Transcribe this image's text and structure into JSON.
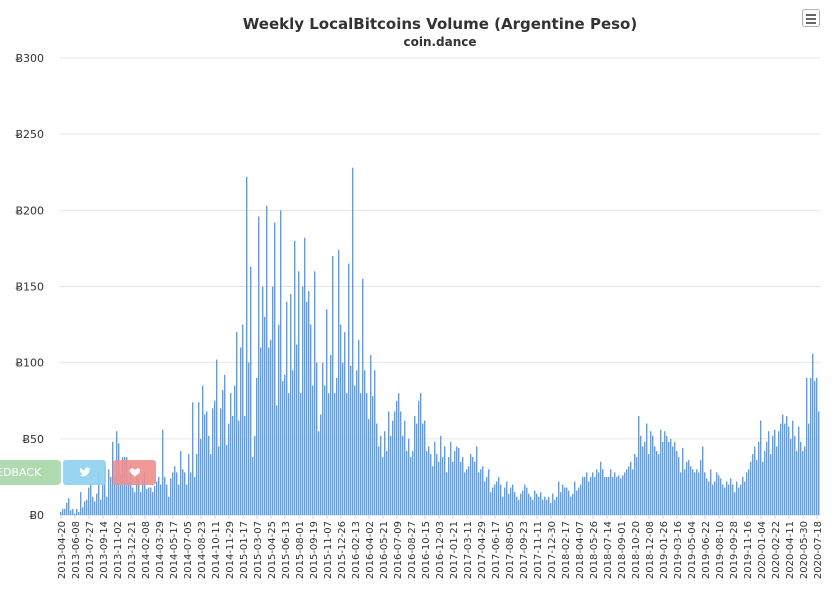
{
  "chart_data": {
    "type": "bar",
    "title": "Weekly LocalBitcoins Volume (Argentine Peso)",
    "subtitle": "coin.dance",
    "xlabel": "",
    "ylabel": "",
    "ylim": [
      0,
      300
    ],
    "ytick_values": [
      0,
      50,
      100,
      150,
      200,
      250,
      300
    ],
    "ytick_labels": [
      "Ƀ0",
      "Ƀ50",
      "Ƀ100",
      "Ƀ150",
      "Ƀ200",
      "Ƀ250",
      "Ƀ300"
    ],
    "xtick_labels": [
      "2013-04-20",
      "2013-06-08",
      "2013-07-27",
      "2013-09-14",
      "2013-11-02",
      "2013-12-21",
      "2014-02-08",
      "2014-03-29",
      "2014-05-17",
      "2014-07-05",
      "2014-08-23",
      "2014-10-11",
      "2014-11-29",
      "2015-01-17",
      "2015-03-07",
      "2015-04-25",
      "2015-06-13",
      "2015-08-01",
      "2015-09-19",
      "2015-11-07",
      "2015-12-26",
      "2016-02-13",
      "2016-04-02",
      "2016-05-21",
      "2016-07-09",
      "2016-08-27",
      "2016-10-15",
      "2016-12-03",
      "2017-01-21",
      "2017-03-11",
      "2017-04-29",
      "2017-06-17",
      "2017-08-05",
      "2017-09-23",
      "2017-11-11",
      "2017-12-30",
      "2018-02-17",
      "2018-04-07",
      "2018-05-26",
      "2018-07-14",
      "2018-09-01",
      "2018-10-20",
      "2018-12-08",
      "2019-01-26",
      "2019-03-16",
      "2019-05-04",
      "2019-06-22",
      "2019-08-10",
      "2019-09-28",
      "2019-11-16",
      "2020-01-04",
      "2020-02-22",
      "2020-04-11",
      "2020-05-30",
      "2020-07-18"
    ],
    "xtick_start_index": 0,
    "xtick_interval": 7,
    "values": [
      2,
      4,
      4,
      8,
      11,
      3,
      4,
      1,
      4,
      2,
      15,
      5,
      9,
      10,
      18,
      21,
      12,
      9,
      14,
      28,
      10,
      20,
      32,
      12,
      30,
      25,
      48,
      25,
      55,
      47,
      27,
      38,
      38,
      38,
      22,
      33,
      18,
      15,
      27,
      24,
      15,
      24,
      28,
      17,
      18,
      18,
      15,
      19,
      22,
      25,
      20,
      56,
      25,
      20,
      12,
      24,
      28,
      32,
      28,
      20,
      42,
      30,
      28,
      20,
      40,
      28,
      74,
      25,
      40,
      74,
      50,
      85,
      66,
      68,
      52,
      40,
      70,
      75,
      102,
      45,
      70,
      82,
      92,
      46,
      60,
      80,
      65,
      85,
      120,
      62,
      110,
      125,
      65,
      222,
      100,
      163,
      38,
      52,
      90,
      196,
      110,
      150,
      130,
      203,
      110,
      115,
      150,
      192,
      72,
      125,
      200,
      88,
      92,
      140,
      80,
      145,
      95,
      180,
      112,
      160,
      80,
      150,
      182,
      140,
      147,
      125,
      85,
      160,
      100,
      55,
      66,
      100,
      85,
      135,
      80,
      105,
      170,
      80,
      90,
      174,
      125,
      100,
      120,
      80,
      165,
      98,
      228,
      85,
      95,
      115,
      80,
      155,
      95,
      80,
      63,
      105,
      78,
      95,
      60,
      45,
      52,
      38,
      55,
      42,
      68,
      52,
      62,
      68,
      75,
      80,
      68,
      52,
      62,
      42,
      50,
      38,
      42,
      65,
      60,
      75,
      80,
      60,
      62,
      42,
      45,
      40,
      32,
      48,
      40,
      35,
      52,
      38,
      45,
      28,
      38,
      48,
      35,
      42,
      45,
      44,
      35,
      38,
      28,
      30,
      32,
      40,
      38,
      35,
      45,
      28,
      30,
      32,
      22,
      25,
      30,
      15,
      18,
      20,
      22,
      25,
      20,
      12,
      18,
      22,
      14,
      18,
      20,
      15,
      12,
      10,
      14,
      16,
      20,
      18,
      14,
      12,
      10,
      16,
      14,
      12,
      15,
      10,
      12,
      10,
      12,
      8,
      14,
      10,
      12,
      22,
      15,
      20,
      18,
      18,
      16,
      12,
      14,
      22,
      16,
      18,
      20,
      25,
      25,
      28,
      22,
      25,
      28,
      25,
      30,
      28,
      35,
      30,
      25,
      25,
      25,
      30,
      25,
      28,
      25,
      26,
      24,
      26,
      28,
      30,
      32,
      35,
      30,
      40,
      38,
      65,
      52,
      45,
      48,
      60,
      40,
      55,
      52,
      45,
      42,
      40,
      56,
      48,
      55,
      52,
      48,
      50,
      45,
      48,
      42,
      38,
      28,
      44,
      30,
      35,
      36,
      32,
      30,
      28,
      30,
      28,
      36,
      45,
      28,
      24,
      22,
      30,
      20,
      22,
      28,
      26,
      24,
      20,
      18,
      22,
      20,
      24,
      20,
      15,
      22,
      18,
      20,
      25,
      22,
      28,
      30,
      35,
      40,
      45,
      36,
      48,
      62,
      35,
      42,
      48,
      55,
      40,
      52,
      56,
      45,
      55,
      60,
      66,
      60,
      65,
      58,
      50,
      62,
      52,
      42,
      58,
      48,
      42,
      45,
      90,
      60,
      90,
      106,
      88,
      90,
      68
    ]
  }
}
